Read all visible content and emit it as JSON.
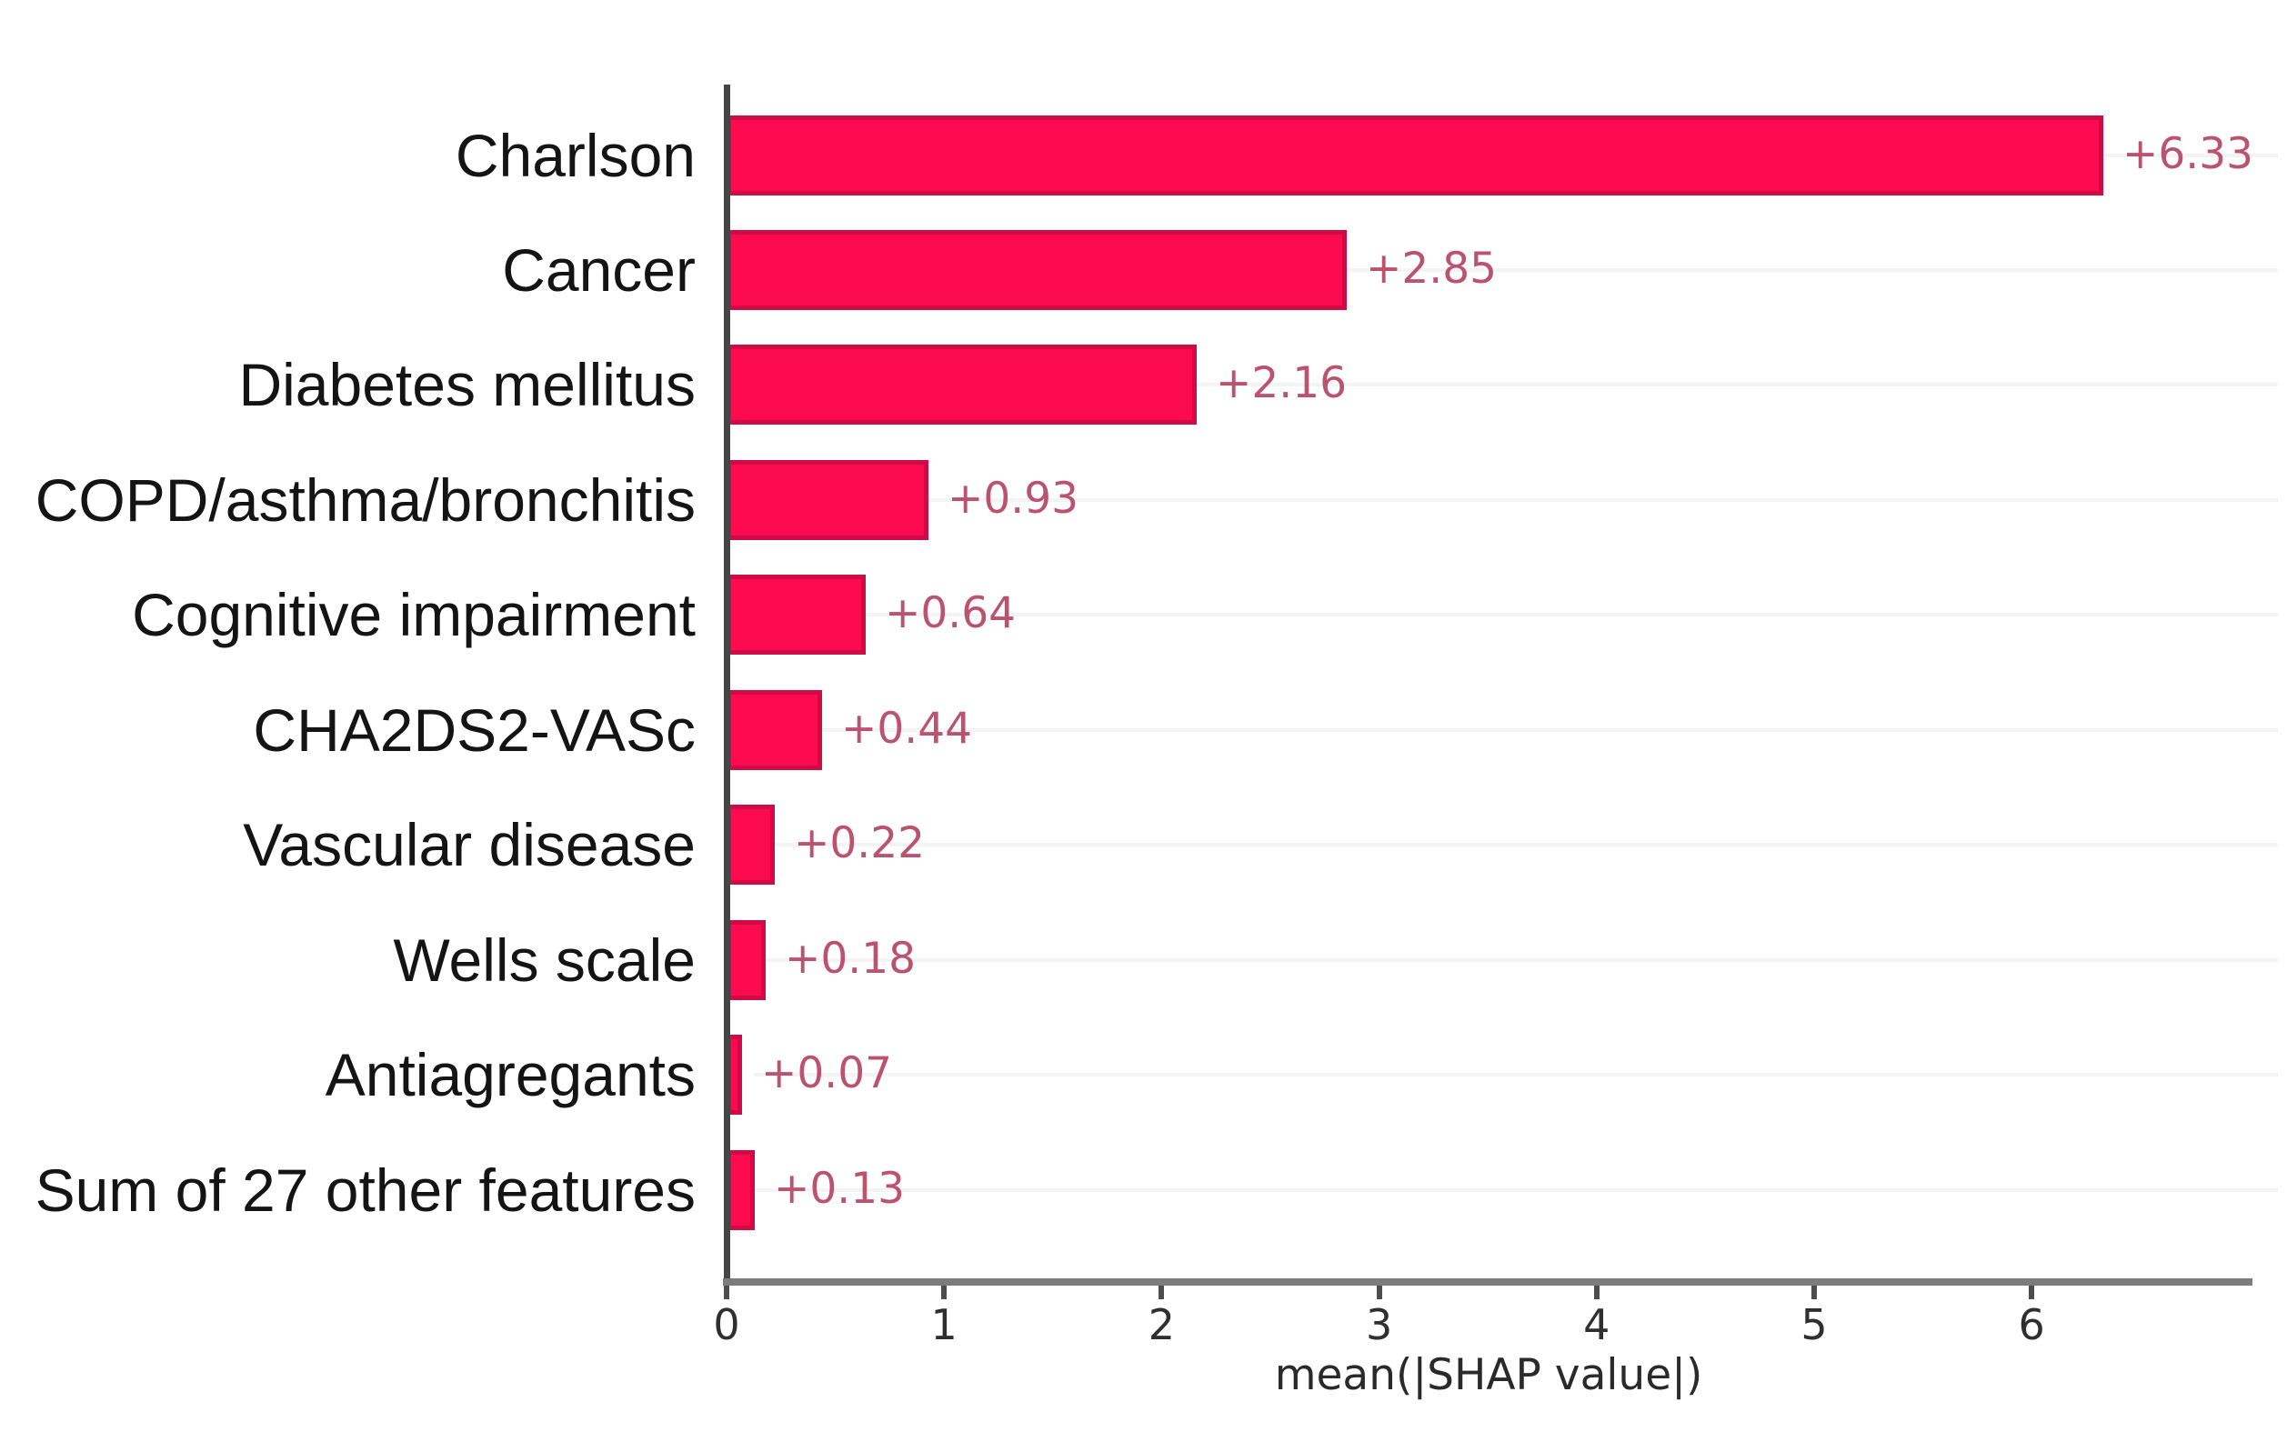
{
  "chart_data": {
    "type": "bar",
    "orientation": "horizontal",
    "title": "",
    "categories": [
      "Charlson",
      "Cancer",
      "Diabetes mellitus",
      "COPD/asthma/bronchitis",
      "Cognitive impairment",
      "CHA2DS2-VASc",
      "Vascular disease",
      "Wells scale",
      "Antiagregants",
      "Sum of 27 other features"
    ],
    "values": [
      6.33,
      2.85,
      2.16,
      0.93,
      0.64,
      0.44,
      0.22,
      0.18,
      0.07,
      0.13
    ],
    "bar_labels": [
      "+6.33",
      "+2.85",
      "+2.16",
      "+0.93",
      "+0.64",
      "+0.44",
      "+0.22",
      "+0.18",
      "+0.07",
      "+0.13"
    ],
    "xlabel": "mean(|SHAP value|)",
    "xticks": [
      0,
      1,
      2,
      3,
      4,
      5,
      6
    ],
    "xlim": [
      0,
      7
    ],
    "grid": false,
    "legend_position": "none",
    "bar_color": "#fb0a50",
    "bar_edge_color": "#cf0a45",
    "value_label_color": "#bb536f",
    "category_label_color": "#141414",
    "tick_label_color": "#2f2f2f",
    "axis_line_color": "#7c7c7c",
    "spine_color": "#454545",
    "background_color": "#ffffff"
  }
}
